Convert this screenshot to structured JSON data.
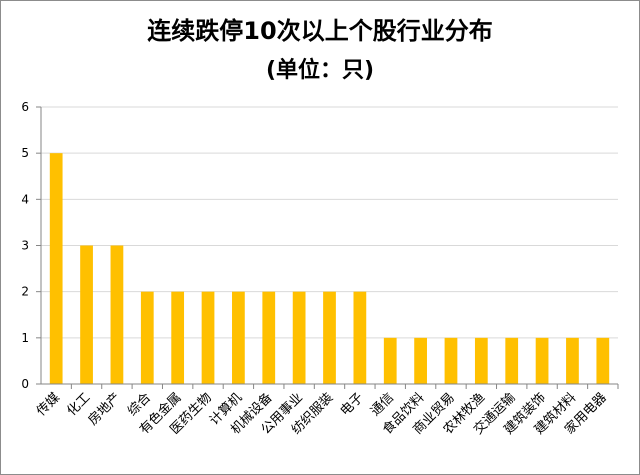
{
  "chart_data": {
    "type": "bar",
    "title": "连续跌停10次以上个股行业分布",
    "subtitle": "(单位：只)",
    "xlabel": "",
    "ylabel": "",
    "categories": [
      "传媒",
      "化工",
      "房地产",
      "综合",
      "有色金属",
      "医药生物",
      "计算机",
      "机械设备",
      "公用事业",
      "纺织服装",
      "电子",
      "通信",
      "食品饮料",
      "商业贸易",
      "农林牧渔",
      "交通运输",
      "建筑装饰",
      "建筑材料",
      "家用电器"
    ],
    "values": [
      5,
      3,
      3,
      2,
      2,
      2,
      2,
      2,
      2,
      2,
      2,
      1,
      1,
      1,
      1,
      1,
      1,
      1,
      1
    ],
    "ylim": [
      0,
      6
    ],
    "yticks": [
      0,
      1,
      2,
      3,
      4,
      5,
      6
    ],
    "grid": true,
    "legend": "none",
    "colors": {
      "bar": "#FFC000",
      "grid": "#d9d9d9",
      "axis": "#868686"
    }
  }
}
